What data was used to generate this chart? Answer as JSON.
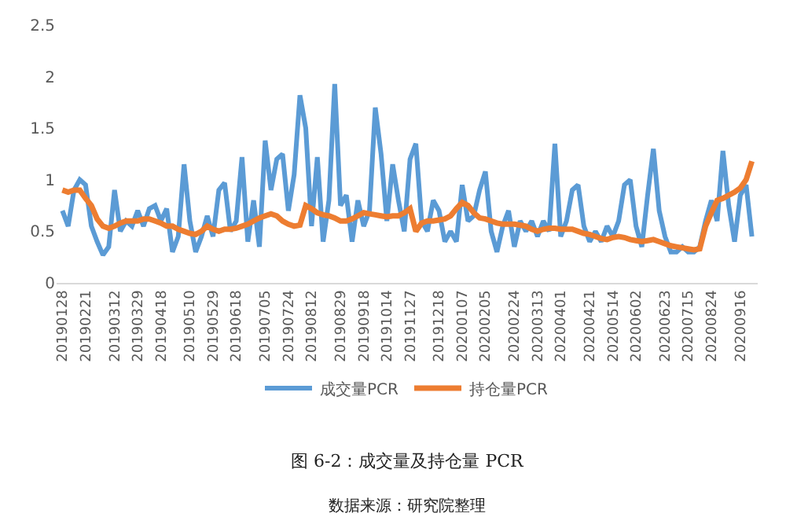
{
  "chart_data": {
    "type": "line",
    "title": "图 6-2：成交量及持仓量 PCR",
    "annotations": [
      "数据来源：研究院整理"
    ],
    "categories": [
      "20190128",
      null,
      null,
      null,
      "20190221",
      null,
      null,
      null,
      null,
      "20190312",
      null,
      null,
      null,
      "20190329",
      null,
      null,
      null,
      "20190418",
      null,
      null,
      null,
      null,
      "20190510",
      null,
      null,
      null,
      "20190529",
      null,
      null,
      null,
      "20190618",
      null,
      null,
      null,
      null,
      "20190705",
      null,
      null,
      null,
      "20190724",
      null,
      null,
      null,
      "20190812",
      null,
      null,
      null,
      null,
      "20190829",
      null,
      null,
      null,
      "20190918",
      null,
      null,
      null,
      "20191014",
      null,
      null,
      null,
      "20191127",
      null,
      null,
      null,
      null,
      "20191218",
      null,
      null,
      null,
      "20200107",
      null,
      null,
      null,
      "20200205",
      null,
      null,
      null,
      null,
      "20200224",
      null,
      null,
      null,
      "20200313",
      null,
      null,
      null,
      "20200401",
      null,
      null,
      null,
      null,
      "20200421",
      null,
      null,
      null,
      "20200514",
      null,
      null,
      null,
      "20200602",
      null,
      null,
      null,
      null,
      "20200623",
      null,
      null,
      null,
      "20200715",
      null,
      null,
      null,
      "20200824",
      null,
      null,
      null,
      null,
      "20200916",
      null,
      null
    ],
    "series": [
      {
        "name": "成交量PCR",
        "color": "#5b9bd5",
        "values": [
          0.7,
          0.55,
          0.9,
          1.0,
          0.95,
          0.55,
          0.4,
          0.27,
          0.35,
          0.9,
          0.5,
          0.6,
          0.55,
          0.7,
          0.55,
          0.72,
          0.75,
          0.6,
          0.72,
          0.3,
          0.45,
          1.15,
          0.6,
          0.3,
          0.45,
          0.65,
          0.45,
          0.9,
          0.97,
          0.5,
          0.6,
          1.22,
          0.4,
          0.8,
          0.35,
          1.38,
          0.9,
          1.2,
          1.25,
          0.7,
          1.05,
          1.82,
          1.5,
          0.55,
          1.22,
          0.4,
          0.8,
          1.93,
          0.75,
          0.85,
          0.4,
          0.8,
          0.55,
          0.7,
          1.7,
          1.25,
          0.6,
          1.15,
          0.8,
          0.5,
          1.2,
          1.35,
          0.6,
          0.5,
          0.8,
          0.7,
          0.4,
          0.5,
          0.4,
          0.95,
          0.6,
          0.65,
          0.9,
          1.08,
          0.5,
          0.3,
          0.55,
          0.7,
          0.35,
          0.6,
          0.5,
          0.6,
          0.45,
          0.6,
          0.5,
          1.35,
          0.45,
          0.6,
          0.9,
          0.95,
          0.55,
          0.4,
          0.5,
          0.4,
          0.55,
          0.45,
          0.6,
          0.95,
          1.0,
          0.55,
          0.35,
          0.85,
          1.3,
          0.7,
          0.45,
          0.3,
          0.3,
          0.35,
          0.3,
          0.3,
          0.35,
          0.6,
          0.8,
          0.6,
          1.28,
          0.75,
          0.4,
          0.85,
          0.95,
          0.45
        ]
      },
      {
        "name": "持仓量PCR",
        "color": "#ed7d31",
        "values": [
          0.9,
          0.88,
          0.9,
          0.9,
          0.82,
          0.75,
          0.62,
          0.55,
          0.53,
          0.55,
          0.58,
          0.6,
          0.6,
          0.6,
          0.62,
          0.62,
          0.6,
          0.58,
          0.55,
          0.55,
          0.52,
          0.5,
          0.48,
          0.47,
          0.5,
          0.55,
          0.52,
          0.5,
          0.52,
          0.52,
          0.53,
          0.55,
          0.57,
          0.6,
          0.63,
          0.65,
          0.67,
          0.65,
          0.6,
          0.57,
          0.55,
          0.56,
          0.75,
          0.72,
          0.68,
          0.66,
          0.65,
          0.63,
          0.6,
          0.6,
          0.62,
          0.65,
          0.68,
          0.67,
          0.66,
          0.65,
          0.64,
          0.65,
          0.65,
          0.68,
          0.72,
          0.5,
          0.58,
          0.6,
          0.6,
          0.61,
          0.62,
          0.65,
          0.72,
          0.78,
          0.75,
          0.68,
          0.63,
          0.62,
          0.6,
          0.58,
          0.57,
          0.57,
          0.57,
          0.56,
          0.55,
          0.52,
          0.5,
          0.52,
          0.53,
          0.53,
          0.52,
          0.52,
          0.52,
          0.5,
          0.48,
          0.47,
          0.45,
          0.43,
          0.42,
          0.44,
          0.45,
          0.44,
          0.42,
          0.41,
          0.4,
          0.41,
          0.42,
          0.4,
          0.38,
          0.36,
          0.35,
          0.34,
          0.33,
          0.32,
          0.33,
          0.55,
          0.68,
          0.8,
          0.82,
          0.85,
          0.88,
          0.92,
          1.0,
          1.18
        ]
      }
    ],
    "ylim": [
      0,
      2.5
    ],
    "yticks": [
      0,
      0.5,
      1,
      1.5,
      2,
      2.5
    ],
    "grid": false,
    "legend": "bottom",
    "marker": "none",
    "line_style": "solid"
  }
}
